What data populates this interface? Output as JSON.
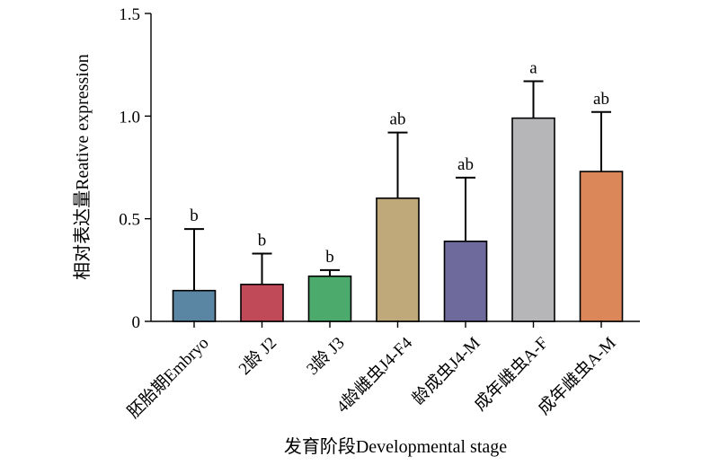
{
  "chart_data": {
    "type": "bar",
    "title": "",
    "xlabel": "发育阶段Developmental stage",
    "ylabel": "相对表达量Reative expression",
    "ylim": [
      0,
      1.5
    ],
    "yticks": [
      {
        "value": 0,
        "label": "0"
      },
      {
        "value": 0.5,
        "label": "0.5"
      },
      {
        "value": 1.0,
        "label": "1.0"
      },
      {
        "value": 1.5,
        "label": "1.5"
      }
    ],
    "categories": [
      "胚胎期Embryo",
      "2龄 J2",
      "3龄 J3",
      "4龄雌虫J4-F4",
      "龄成虫J4-M",
      "成年雌虫A-F",
      "成年雌虫A-M"
    ],
    "values": [
      0.15,
      0.18,
      0.22,
      0.6,
      0.39,
      0.99,
      0.73
    ],
    "errors": [
      0.3,
      0.15,
      0.03,
      0.32,
      0.31,
      0.18,
      0.29
    ],
    "significance": [
      "b",
      "b",
      "b",
      "ab",
      "ab",
      "a",
      "ab"
    ],
    "colors": [
      "#5b86a3",
      "#c04a57",
      "#4daa6d",
      "#bfa97a",
      "#6e6a9c",
      "#b6b6b9",
      "#dc875a"
    ],
    "grid": false,
    "legend": "none"
  }
}
